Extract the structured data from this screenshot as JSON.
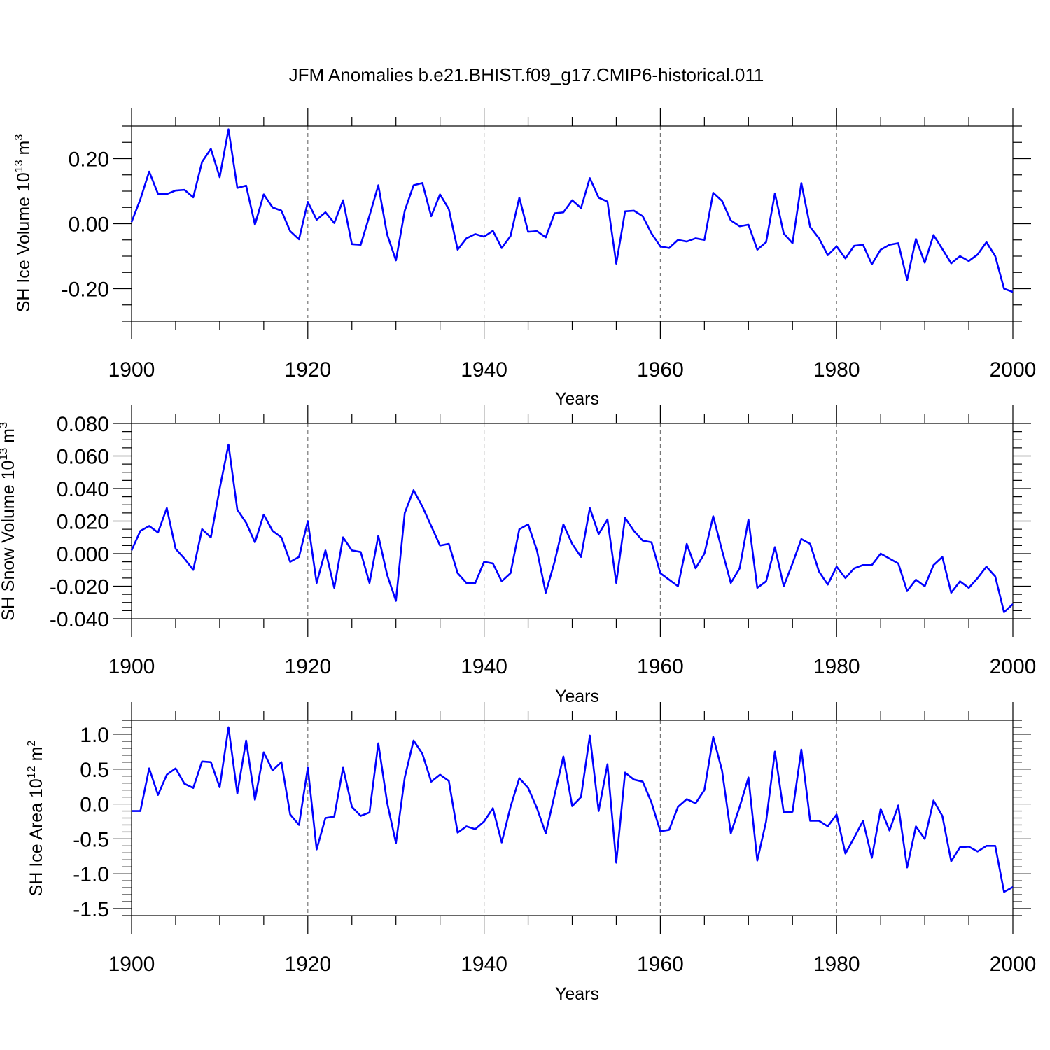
{
  "title": "JFM Anomalies b.e21.BHIST.f09_g17.CMIP6-historical.011",
  "colors": {
    "series": "#0000ff",
    "grid": "#777777",
    "axis": "#000000"
  },
  "chart_data": [
    {
      "type": "line",
      "ylabel_parts": [
        "SH Ice Volume 10",
        "13",
        " m",
        "3"
      ],
      "xlabel": "Years",
      "xlim": [
        1900,
        2000
      ],
      "ylim": [
        -0.3,
        0.3
      ],
      "xticks": [
        1900,
        1920,
        1940,
        1960,
        1980,
        2000
      ],
      "xtick_labels": [
        "1900",
        "1920",
        "1940",
        "1960",
        "1980",
        "2000"
      ],
      "yticks": [
        -0.2,
        0.0,
        0.2
      ],
      "ytick_labels": [
        "-0.20",
        "0.00",
        "0.20"
      ],
      "yminor_step": 0.05,
      "grid_x": [
        1920,
        1940,
        1960,
        1980
      ],
      "x_start": 1900,
      "values": [
        0.005,
        0.075,
        0.16,
        0.092,
        0.091,
        0.102,
        0.104,
        0.081,
        0.19,
        0.23,
        0.143,
        0.29,
        0.11,
        0.117,
        -0.003,
        0.09,
        0.05,
        0.04,
        -0.023,
        -0.048,
        0.067,
        0.012,
        0.035,
        0.002,
        0.072,
        -0.063,
        -0.065,
        0.025,
        0.118,
        -0.033,
        -0.113,
        0.04,
        0.118,
        0.125,
        0.023,
        0.09,
        0.045,
        -0.08,
        -0.045,
        -0.032,
        -0.04,
        -0.022,
        -0.075,
        -0.038,
        0.08,
        -0.025,
        -0.023,
        -0.042,
        0.032,
        0.035,
        0.072,
        0.048,
        0.14,
        0.08,
        0.068,
        -0.123,
        0.038,
        0.04,
        0.023,
        -0.03,
        -0.07,
        -0.075,
        -0.05,
        -0.055,
        -0.045,
        -0.05,
        0.095,
        0.07,
        0.01,
        -0.008,
        -0.003,
        -0.08,
        -0.057,
        0.093,
        -0.03,
        -0.06,
        0.125,
        -0.01,
        -0.045,
        -0.097,
        -0.07,
        -0.107,
        -0.068,
        -0.065,
        -0.125,
        -0.08,
        -0.065,
        -0.06,
        -0.173,
        -0.047,
        -0.12,
        -0.035,
        -0.078,
        -0.122,
        -0.1,
        -0.115,
        -0.095,
        -0.057,
        -0.1,
        -0.2,
        -0.21
      ]
    },
    {
      "type": "line",
      "ylabel_parts": [
        "SH Snow Volume 10",
        "13",
        " m",
        "3"
      ],
      "xlabel": "Years",
      "xlim": [
        1900,
        2000
      ],
      "ylim": [
        -0.04,
        0.08
      ],
      "xticks": [
        1900,
        1920,
        1940,
        1960,
        1980,
        2000
      ],
      "xtick_labels": [
        "1900",
        "1920",
        "1940",
        "1960",
        "1980",
        "2000"
      ],
      "yticks": [
        -0.04,
        -0.02,
        0.0,
        0.02,
        0.04,
        0.06,
        0.08
      ],
      "ytick_labels": [
        "-0.040",
        "-0.020",
        "0.000",
        "0.020",
        "0.040",
        "0.060",
        "0.080"
      ],
      "yminor_step": 0.005,
      "grid_x": [
        1920,
        1940,
        1960,
        1980
      ],
      "x_start": 1900,
      "values": [
        0.002,
        0.014,
        0.017,
        0.013,
        0.028,
        0.003,
        -0.003,
        -0.01,
        0.015,
        0.01,
        0.04,
        0.067,
        0.027,
        0.019,
        0.007,
        0.024,
        0.014,
        0.01,
        -0.005,
        -0.002,
        0.02,
        -0.018,
        0.002,
        -0.021,
        0.01,
        0.002,
        0.001,
        -0.018,
        0.011,
        -0.013,
        -0.029,
        0.025,
        0.039,
        0.029,
        0.017,
        0.005,
        0.006,
        -0.012,
        -0.018,
        -0.018,
        -0.005,
        -0.006,
        -0.017,
        -0.012,
        0.015,
        0.018,
        0.002,
        -0.024,
        -0.005,
        0.018,
        0.006,
        -0.002,
        0.028,
        0.012,
        0.021,
        -0.018,
        0.022,
        0.014,
        0.008,
        0.007,
        -0.012,
        -0.016,
        -0.02,
        0.006,
        -0.009,
        0.0,
        0.023,
        0.002,
        -0.018,
        -0.009,
        0.021,
        -0.021,
        -0.017,
        0.004,
        -0.02,
        -0.006,
        0.009,
        0.006,
        -0.011,
        -0.019,
        -0.008,
        -0.015,
        -0.009,
        -0.007,
        -0.007,
        0.0,
        -0.003,
        -0.006,
        -0.023,
        -0.016,
        -0.02,
        -0.007,
        -0.002,
        -0.024,
        -0.017,
        -0.021,
        -0.015,
        -0.008,
        -0.014,
        -0.036,
        -0.031
      ]
    },
    {
      "type": "line",
      "ylabel_parts": [
        "SH Ice Area 10",
        "12",
        " m",
        "2"
      ],
      "xlabel": "Years",
      "xlim": [
        1900,
        2000
      ],
      "ylim": [
        -1.6,
        1.2
      ],
      "xticks": [
        1900,
        1920,
        1940,
        1960,
        1980,
        2000
      ],
      "xtick_labels": [
        "1900",
        "1920",
        "1940",
        "1960",
        "1980",
        "2000"
      ],
      "yticks": [
        -1.5,
        -1.0,
        -0.5,
        0.0,
        0.5,
        1.0
      ],
      "ytick_labels": [
        "-1.5",
        "-1.0",
        "-0.5",
        "0.0",
        "0.5",
        "1.0"
      ],
      "yminor_step": 0.1,
      "grid_x": [
        1920,
        1940,
        1960,
        1980
      ],
      "x_start": 1900,
      "values": [
        -0.1,
        -0.1,
        0.51,
        0.13,
        0.42,
        0.51,
        0.29,
        0.23,
        0.61,
        0.6,
        0.24,
        1.1,
        0.15,
        0.91,
        0.06,
        0.74,
        0.48,
        0.6,
        -0.15,
        -0.3,
        0.52,
        -0.65,
        -0.2,
        -0.18,
        0.52,
        -0.04,
        -0.17,
        -0.12,
        0.87,
        0.02,
        -0.56,
        0.38,
        0.91,
        0.72,
        0.32,
        0.42,
        0.33,
        -0.41,
        -0.32,
        -0.36,
        -0.25,
        -0.06,
        -0.55,
        -0.04,
        0.37,
        0.23,
        -0.06,
        -0.42,
        0.13,
        0.68,
        -0.03,
        0.1,
        0.98,
        -0.1,
        0.57,
        -0.84,
        0.45,
        0.35,
        0.32,
        0.02,
        -0.39,
        -0.37,
        -0.04,
        0.07,
        0.01,
        0.2,
        0.96,
        0.48,
        -0.42,
        -0.04,
        0.38,
        -0.81,
        -0.25,
        0.75,
        -0.12,
        -0.11,
        0.78,
        -0.24,
        -0.24,
        -0.32,
        -0.15,
        -0.71,
        -0.48,
        -0.24,
        -0.77,
        -0.07,
        -0.38,
        -0.02,
        -0.91,
        -0.32,
        -0.5,
        0.05,
        -0.17,
        -0.82,
        -0.62,
        -0.61,
        -0.68,
        -0.6,
        -0.6,
        -1.26,
        -1.19
      ]
    }
  ]
}
